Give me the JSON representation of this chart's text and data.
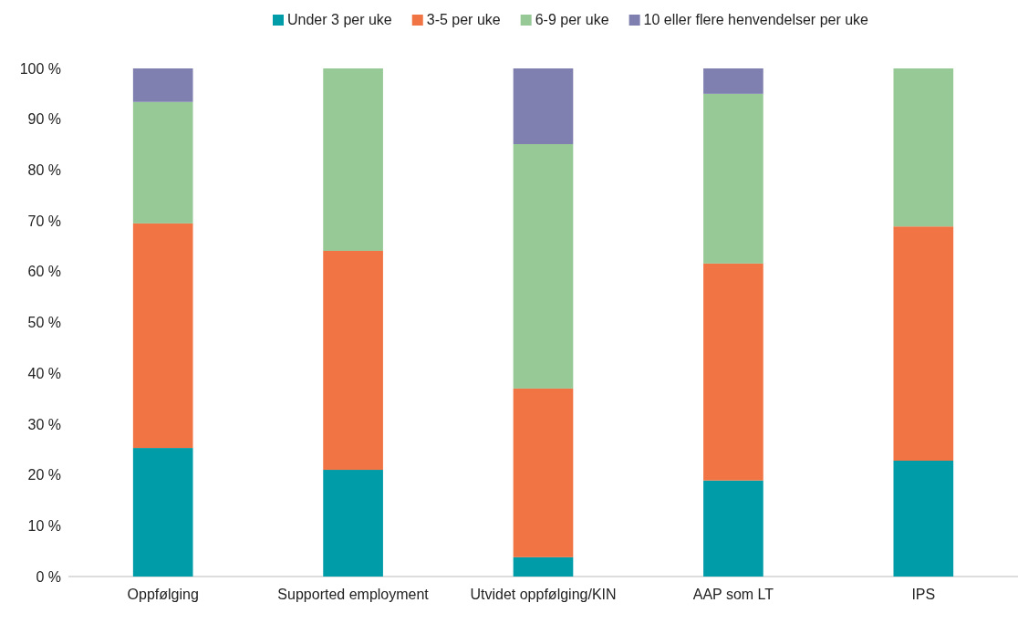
{
  "chart_data": {
    "type": "bar",
    "stacked": true,
    "categories": [
      "Oppfølging",
      "Supported employment",
      "Utvidet oppfølging/KIN",
      "AAP som LT",
      "IPS"
    ],
    "series": [
      {
        "name": "Under 3 per uke",
        "color": "#009ca8",
        "values": [
          25.3,
          21.0,
          3.8,
          18.9,
          22.8
        ]
      },
      {
        "name": "3-5 per uke",
        "color": "#f07444",
        "values": [
          44.2,
          43.1,
          33.2,
          42.7,
          46.1
        ]
      },
      {
        "name": "6-9 per uke",
        "color": "#97c997",
        "values": [
          23.9,
          35.9,
          48.1,
          33.4,
          31.1
        ]
      },
      {
        "name": "10 eller flere henvendelser per uke",
        "color": "#8080b0",
        "values": [
          6.6,
          0,
          14.9,
          5.0,
          0
        ]
      }
    ],
    "ylim": [
      0,
      100
    ],
    "yticks": [
      {
        "value": 0,
        "label": "0 %"
      },
      {
        "value": 10,
        "label": "10 %"
      },
      {
        "value": 20,
        "label": "20 %"
      },
      {
        "value": 30,
        "label": "30 %"
      },
      {
        "value": 40,
        "label": "40 %"
      },
      {
        "value": 50,
        "label": "50 %"
      },
      {
        "value": 60,
        "label": "60 %"
      },
      {
        "value": 70,
        "label": "70 %"
      },
      {
        "value": 80,
        "label": "80 %"
      },
      {
        "value": 90,
        "label": "90 %"
      },
      {
        "value": 100,
        "label": "100 %"
      }
    ],
    "grid": false,
    "legend": "top"
  }
}
